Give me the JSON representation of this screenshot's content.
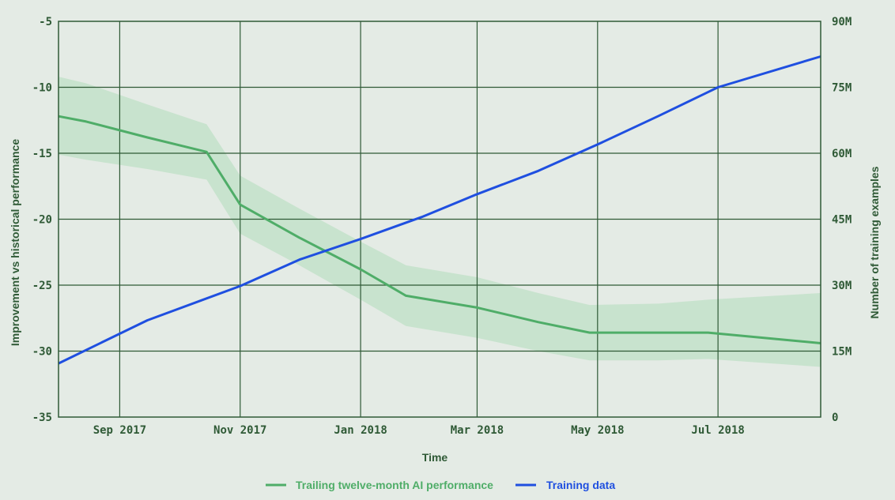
{
  "chart_data": {
    "type": "line",
    "title": "",
    "xlabel": "Time",
    "ylabel_left": "Improvement vs historical performance",
    "ylabel_right": "Number of training examples",
    "x_ticks": [
      {
        "date": "2017-09-01",
        "label": "Sep 2017"
      },
      {
        "date": "2017-11-01",
        "label": "Nov 2017"
      },
      {
        "date": "2018-01-01",
        "label": "Jan 2018"
      },
      {
        "date": "2018-03-01",
        "label": "Mar 2018"
      },
      {
        "date": "2018-05-01",
        "label": "May 2018"
      },
      {
        "date": "2018-07-01",
        "label": "Jul 2018"
      }
    ],
    "xlim": [
      "2017-08-01",
      "2018-08-22"
    ],
    "ylim_left": [
      -35,
      -5
    ],
    "y_ticks_left": [
      {
        "value": -5,
        "label": "-5"
      },
      {
        "value": -10,
        "label": "-10"
      },
      {
        "value": -15,
        "label": "-15"
      },
      {
        "value": -20,
        "label": "-20"
      },
      {
        "value": -25,
        "label": "-25"
      },
      {
        "value": -30,
        "label": "-30"
      },
      {
        "value": -35,
        "label": "-35"
      }
    ],
    "ylim_right": [
      0,
      90000000
    ],
    "y_ticks_right": [
      {
        "value": 0,
        "label": "0"
      },
      {
        "value": 15000000,
        "label": "15M"
      },
      {
        "value": 30000000,
        "label": "30M"
      },
      {
        "value": 45000000,
        "label": "45M"
      },
      {
        "value": 60000000,
        "label": "60M"
      },
      {
        "value": 75000000,
        "label": "75M"
      },
      {
        "value": 90000000,
        "label": "90M"
      }
    ],
    "grid": true,
    "legend_position": "bottom",
    "series": [
      {
        "name": "Trailing twelve-month AI performance",
        "axis": "left",
        "color": "#4fad68",
        "band_color": "#bfe0c6",
        "x": [
          "2017-08-01",
          "2017-08-15",
          "2017-09-15",
          "2017-10-15",
          "2017-11-01",
          "2017-12-01",
          "2018-01-01",
          "2018-01-24",
          "2018-03-01",
          "2018-04-01",
          "2018-04-27",
          "2018-06-01",
          "2018-06-26",
          "2018-08-22"
        ],
        "values": [
          -12.2,
          -12.6,
          -13.8,
          -14.9,
          -18.9,
          -21.4,
          -23.8,
          -25.8,
          -26.7,
          -27.8,
          -28.6,
          -28.6,
          -28.6,
          -29.4
        ],
        "lower": [
          -15.1,
          -15.5,
          -16.2,
          -17.0,
          -21.1,
          -23.5,
          -26.1,
          -28.1,
          -29.0,
          -30.0,
          -30.7,
          -30.7,
          -30.6,
          -31.2
        ],
        "upper": [
          -9.2,
          -9.7,
          -11.3,
          -12.8,
          -16.7,
          -19.2,
          -21.7,
          -23.5,
          -24.4,
          -25.6,
          -26.5,
          -26.4,
          -26.1,
          -25.6
        ]
      },
      {
        "name": "Training data",
        "axis": "right",
        "color": "#1f4fe0",
        "x": [
          "2017-08-01",
          "2017-09-15",
          "2017-11-01",
          "2017-12-01",
          "2018-01-01",
          "2018-02-01",
          "2018-03-01",
          "2018-04-01",
          "2018-05-01",
          "2018-06-01",
          "2018-07-01",
          "2018-08-22"
        ],
        "values": [
          12200000,
          22000000,
          29800000,
          35800000,
          40500000,
          45500000,
          50700000,
          56000000,
          62000000,
          68500000,
          75000000,
          82000000
        ]
      }
    ]
  }
}
